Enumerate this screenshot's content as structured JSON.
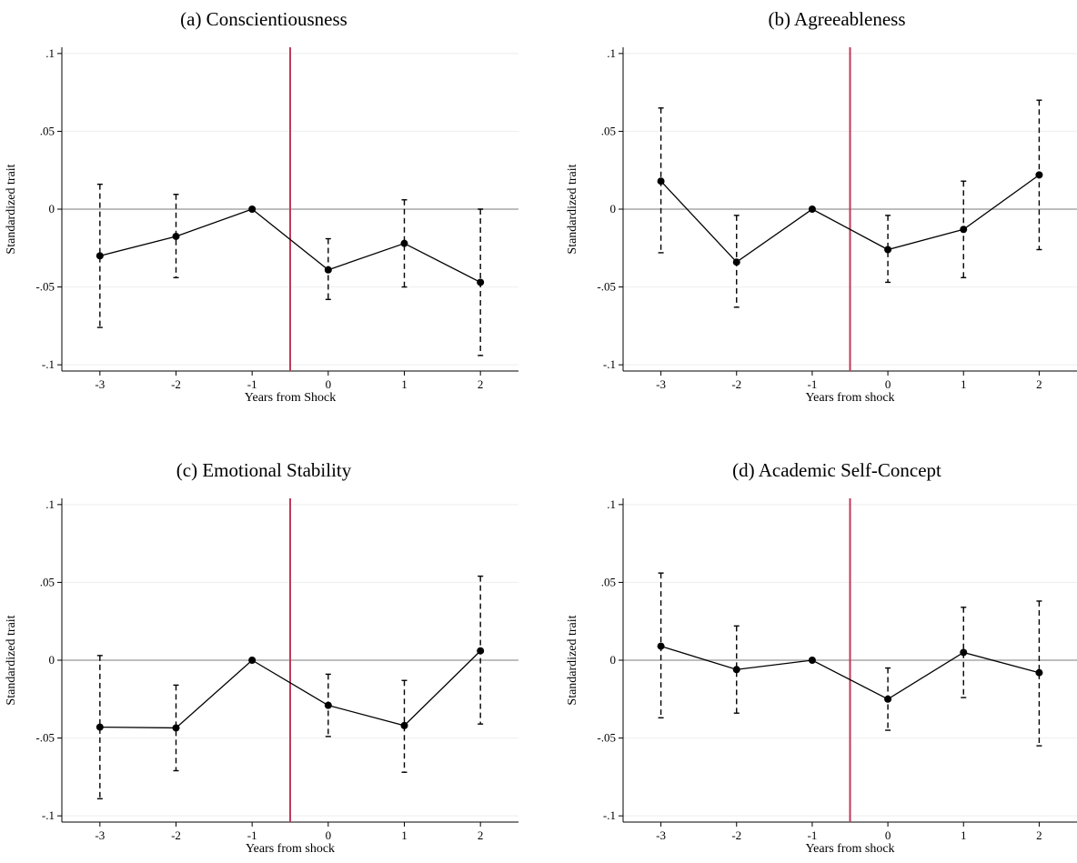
{
  "chart_data": [
    {
      "type": "line",
      "title": "(a) Conscientiousness",
      "xlabel": "Years from Shock",
      "ylabel": "Standardized trait",
      "x": [
        -3,
        -2,
        -1,
        0,
        1,
        2
      ],
      "series": [
        {
          "values": [
            -0.03,
            -0.0175,
            0.0,
            -0.039,
            -0.022,
            -0.047
          ],
          "ci_lower": [
            -0.076,
            -0.044,
            0.0,
            -0.058,
            -0.05,
            -0.094
          ],
          "ci_upper": [
            0.016,
            0.0095,
            0.0,
            -0.019,
            0.006,
            0.0
          ]
        }
      ],
      "xlim": [
        -3.5,
        2.5
      ],
      "ylim": [
        -0.104,
        0.104
      ],
      "xticks": [
        "-3",
        "-2",
        "-1",
        "0",
        "1",
        "2"
      ],
      "yticks": [
        ".1",
        ".05",
        "0",
        "-.05",
        "-.1"
      ],
      "ytick_values": [
        0.1,
        0.05,
        0,
        -0.05,
        -0.1
      ],
      "reference_line_x": -0.5,
      "grid": true
    },
    {
      "type": "line",
      "title": "(b) Agreeableness",
      "xlabel": "Years from shock",
      "ylabel": "Standardized trait",
      "x": [
        -3,
        -2,
        -1,
        0,
        1,
        2
      ],
      "series": [
        {
          "values": [
            0.018,
            -0.034,
            0.0,
            -0.026,
            -0.013,
            0.022
          ],
          "ci_lower": [
            -0.028,
            -0.063,
            0.0,
            -0.047,
            -0.044,
            -0.026
          ],
          "ci_upper": [
            0.065,
            -0.004,
            0.0,
            -0.004,
            0.018,
            0.07
          ]
        }
      ],
      "xlim": [
        -3.5,
        2.5
      ],
      "ylim": [
        -0.104,
        0.104
      ],
      "xticks": [
        "-3",
        "-2",
        "-1",
        "0",
        "1",
        "2"
      ],
      "yticks": [
        ".1",
        ".05",
        "0",
        "-.05",
        "-.1"
      ],
      "ytick_values": [
        0.1,
        0.05,
        0,
        -0.05,
        -0.1
      ],
      "reference_line_x": -0.5,
      "grid": true
    },
    {
      "type": "line",
      "title": "(c) Emotional Stability",
      "xlabel": "Years from shock",
      "ylabel": "Standardized trait",
      "x": [
        -3,
        -2,
        -1,
        0,
        1,
        2
      ],
      "series": [
        {
          "values": [
            -0.043,
            -0.0435,
            0.0,
            -0.029,
            -0.042,
            0.006
          ],
          "ci_lower": [
            -0.089,
            -0.071,
            0.0,
            -0.049,
            -0.072,
            -0.041
          ],
          "ci_upper": [
            0.003,
            -0.016,
            0.0,
            -0.009,
            -0.013,
            0.054
          ]
        }
      ],
      "xlim": [
        -3.5,
        2.5
      ],
      "ylim": [
        -0.104,
        0.104
      ],
      "xticks": [
        "-3",
        "-2",
        "-1",
        "0",
        "1",
        "2"
      ],
      "yticks": [
        ".1",
        ".05",
        "0",
        "-.05",
        "-.1"
      ],
      "ytick_values": [
        0.1,
        0.05,
        0,
        -0.05,
        -0.1
      ],
      "reference_line_x": -0.5,
      "grid": true
    },
    {
      "type": "line",
      "title": "(d) Academic Self-Concept",
      "xlabel": "Years from shock",
      "ylabel": "Standardized trait",
      "x": [
        -3,
        -2,
        -1,
        0,
        1,
        2
      ],
      "series": [
        {
          "values": [
            0.009,
            -0.006,
            0.0,
            -0.025,
            0.005,
            -0.008
          ],
          "ci_lower": [
            -0.037,
            -0.034,
            0.0,
            -0.045,
            -0.024,
            -0.055
          ],
          "ci_upper": [
            0.056,
            0.022,
            0.0,
            -0.005,
            0.034,
            0.038
          ]
        }
      ],
      "xlim": [
        -3.5,
        2.5
      ],
      "ylim": [
        -0.104,
        0.104
      ],
      "xticks": [
        "-3",
        "-2",
        "-1",
        "0",
        "1",
        "2"
      ],
      "yticks": [
        ".1",
        ".05",
        "0",
        "-.05",
        "-.1"
      ],
      "ytick_values": [
        0.1,
        0.05,
        0,
        -0.05,
        -0.1
      ],
      "reference_line_x": -0.5,
      "grid": true
    }
  ],
  "colors": {
    "reference_line": "#c0395a",
    "zero_line": "#bdbdbd",
    "grid": "#eeeeee",
    "series": "#000000"
  }
}
